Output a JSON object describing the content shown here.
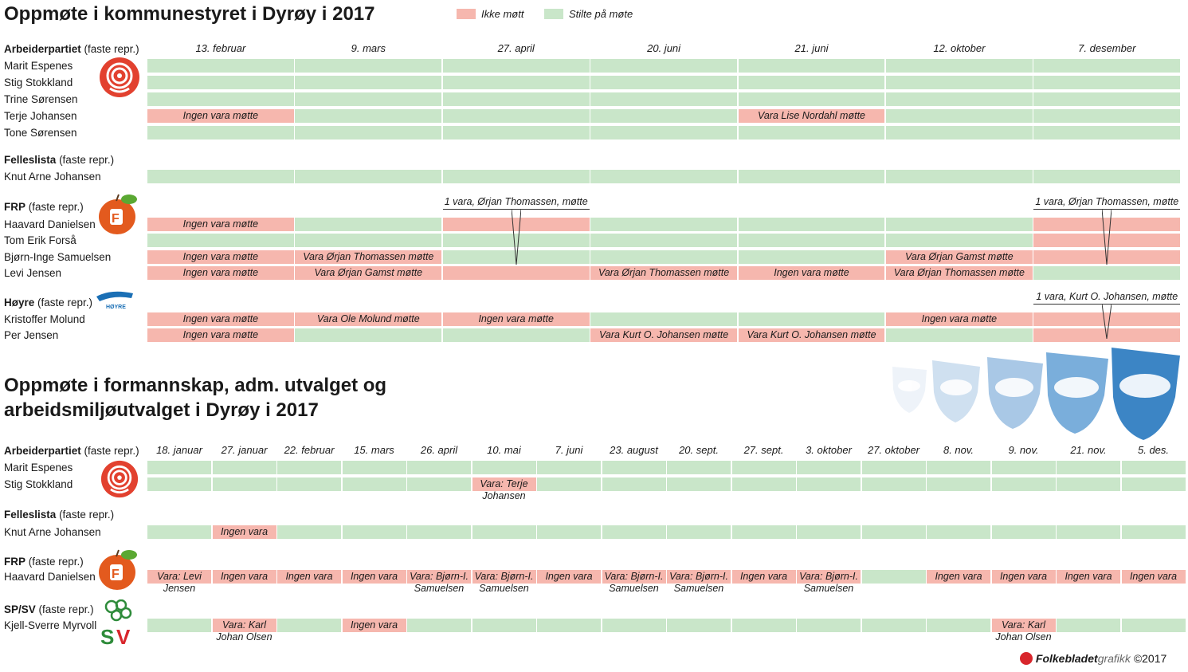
{
  "title1": "Oppmøte i kommunestyret i Dyrøy i 2017",
  "title2_line1": "Oppmøte i formannskap, adm. utvalget og",
  "title2_line2": "arbeidsmiljøutvalget i Dyrøy i 2017",
  "legend": [
    {
      "label": "Ikke møtt",
      "color": "#f6b7ae"
    },
    {
      "label": "Stilte på møte",
      "color": "#c9e6c9"
    }
  ],
  "colors": {
    "attended": "#c9e6c9",
    "absent": "#f6b7ae"
  },
  "footer": {
    "brand": "Folkebladet",
    "brand_suffix": "grafikk",
    "copyright": "©2017"
  },
  "chart_data": [
    {
      "type": "table",
      "title": "Oppmøte i kommunestyret i Dyrøy i 2017",
      "columns": [
        "13. februar",
        "9. mars",
        "27. april",
        "20. juni",
        "21. juni",
        "12. oktober",
        "7. desember"
      ],
      "groups": [
        {
          "party": "Arbeiderpartiet",
          "suffix": "(faste repr.)",
          "icon": "labour-rose-icon",
          "members": [
            {
              "name": "Marit Espenes",
              "cells": [
                "g",
                "g",
                "g",
                "g",
                "g",
                "g",
                "g"
              ],
              "notes": [
                "",
                "",
                "",
                "",
                "",
                "",
                ""
              ]
            },
            {
              "name": "Stig Stokkland",
              "cells": [
                "g",
                "g",
                "g",
                "g",
                "g",
                "g",
                "g"
              ],
              "notes": [
                "",
                "",
                "",
                "",
                "",
                "",
                ""
              ]
            },
            {
              "name": "Trine Sørensen",
              "cells": [
                "g",
                "g",
                "g",
                "g",
                "g",
                "g",
                "g"
              ],
              "notes": [
                "",
                "",
                "",
                "",
                "",
                "",
                ""
              ]
            },
            {
              "name": "Terje Johansen",
              "cells": [
                "r",
                "g",
                "g",
                "g",
                "r",
                "g",
                "g"
              ],
              "notes": [
                "Ingen vara møtte",
                "",
                "",
                "",
                "Vara Lise Nordahl møtte",
                "",
                ""
              ]
            },
            {
              "name": "Tone Sørensen",
              "cells": [
                "g",
                "g",
                "g",
                "g",
                "g",
                "g",
                "g"
              ],
              "notes": [
                "",
                "",
                "",
                "",
                "",
                "",
                ""
              ]
            }
          ]
        },
        {
          "party": "Felleslista",
          "suffix": "(faste repr.)",
          "icon": "",
          "members": [
            {
              "name": "Knut Arne Johansen",
              "cells": [
                "g",
                "g",
                "g",
                "g",
                "g",
                "g",
                "g"
              ],
              "notes": [
                "",
                "",
                "",
                "",
                "",
                "",
                ""
              ]
            }
          ]
        },
        {
          "party": "FRP",
          "suffix": "(faste repr.)",
          "icon": "frp-apple-icon",
          "members": [
            {
              "name": "Haavard Danielsen",
              "cells": [
                "r",
                "g",
                "r",
                "g",
                "g",
                "g",
                "r"
              ],
              "notes": [
                "Ingen vara møtte",
                "",
                "",
                "",
                "",
                "",
                ""
              ]
            },
            {
              "name": "Tom Erik Forså",
              "cells": [
                "g",
                "g",
                "g",
                "g",
                "g",
                "g",
                "r"
              ],
              "notes": [
                "",
                "",
                "",
                "",
                "",
                "",
                ""
              ]
            },
            {
              "name": "Bjørn-Inge Samuelsen",
              "cells": [
                "r",
                "r",
                "g",
                "g",
                "g",
                "r",
                "r"
              ],
              "notes": [
                "Ingen vara møtte",
                "Vara Ørjan Thomassen møtte",
                "",
                "",
                "",
                "Vara Ørjan Gamst møtte",
                ""
              ]
            },
            {
              "name": "Levi Jensen",
              "cells": [
                "r",
                "r",
                "r",
                "r",
                "r",
                "r",
                "g"
              ],
              "notes": [
                "Ingen vara møtte",
                "Vara Ørjan Gamst møtte",
                "",
                "Vara Ørjan Thomassen møtte",
                "Ingen vara møtte",
                "Vara Ørjan Thomassen møtte",
                ""
              ]
            }
          ]
        },
        {
          "party": "Høyre",
          "suffix": "(faste repr.)",
          "icon": "hoyre-logo-icon",
          "members": [
            {
              "name": "Kristoffer Molund",
              "cells": [
                "r",
                "r",
                "r",
                "g",
                "g",
                "r",
                "r"
              ],
              "notes": [
                "Ingen vara møtte",
                "Vara Ole Molund møtte",
                "Ingen vara møtte",
                "",
                "",
                "Ingen vara møtte",
                ""
              ]
            },
            {
              "name": "Per Jensen",
              "cells": [
                "r",
                "g",
                "g",
                "r",
                "r",
                "g",
                "r"
              ],
              "notes": [
                "Ingen vara møtte",
                "",
                "",
                "Vara Kurt O. Johansen møtte",
                "Vara Kurt O. Johansen møtte",
                "",
                ""
              ]
            }
          ]
        }
      ],
      "callouts": [
        {
          "text": "1 vara, Ørjan Thomassen, møtte",
          "column": 2
        },
        {
          "text": "1 vara, Ørjan Thomassen, møtte",
          "column": 6
        },
        {
          "text": "1 vara, Kurt O. Johansen, møtte",
          "column": 6
        }
      ]
    },
    {
      "type": "table",
      "title": "Oppmøte i formannskap, adm. utvalget og arbeidsmiljøutvalget i Dyrøy i 2017",
      "columns": [
        "18. januar",
        "27. januar",
        "22. februar",
        "15. mars",
        "26. april",
        "10. mai",
        "7. juni",
        "23. august",
        "20. sept.",
        "27. sept.",
        "3. oktober",
        "27. oktober",
        "8. nov.",
        "9. nov.",
        "21. nov.",
        "5. des."
      ],
      "groups": [
        {
          "party": "Arbeiderpartiet",
          "suffix": "(faste repr.)",
          "icon": "labour-rose-icon",
          "members": [
            {
              "name": "Marit Espenes",
              "cells": [
                "g",
                "g",
                "g",
                "g",
                "g",
                "g",
                "g",
                "g",
                "g",
                "g",
                "g",
                "g",
                "g",
                "g",
                "g",
                "g"
              ],
              "notes": [
                "",
                "",
                "",
                "",
                "",
                "",
                "",
                "",
                "",
                "",
                "",
                "",
                "",
                "",
                "",
                ""
              ]
            },
            {
              "name": "Stig Stokkland",
              "cells": [
                "g",
                "g",
                "g",
                "g",
                "g",
                "r",
                "g",
                "g",
                "g",
                "g",
                "g",
                "g",
                "g",
                "g",
                "g",
                "g"
              ],
              "notes": [
                "",
                "",
                "",
                "",
                "",
                "Vara: Terje|Johansen",
                "",
                "",
                "",
                "",
                "",
                "",
                "",
                "",
                "",
                ""
              ]
            }
          ]
        },
        {
          "party": "Felleslista",
          "suffix": "(faste repr.)",
          "icon": "",
          "members": [
            {
              "name": "Knut Arne Johansen",
              "cells": [
                "g",
                "r",
                "g",
                "g",
                "g",
                "g",
                "g",
                "g",
                "g",
                "g",
                "g",
                "g",
                "g",
                "g",
                "g",
                "g"
              ],
              "notes": [
                "",
                "Ingen vara",
                "",
                "",
                "",
                "",
                "",
                "",
                "",
                "",
                "",
                "",
                "",
                "",
                "",
                ""
              ]
            }
          ]
        },
        {
          "party": "FRP",
          "suffix": "(faste repr.)",
          "icon": "frp-apple-icon",
          "members": [
            {
              "name": "Haavard Danielsen",
              "cells": [
                "r",
                "r",
                "r",
                "r",
                "r",
                "r",
                "r",
                "r",
                "r",
                "r",
                "r",
                "g",
                "r",
                "r",
                "r",
                "r"
              ],
              "notes": [
                "Vara: Levi|Jensen",
                "Ingen vara",
                "Ingen vara",
                "Ingen vara",
                "Vara: Bjørn-I.|Samuelsen",
                "Vara: Bjørn-I.|Samuelsen",
                "Ingen vara",
                "Vara: Bjørn-I.|Samuelsen",
                "Vara: Bjørn-I.|Samuelsen",
                "Ingen vara",
                "Vara: Bjørn-I.|Samuelsen",
                "",
                "Ingen vara",
                "Ingen vara",
                "Ingen vara",
                "Ingen vara"
              ]
            }
          ]
        },
        {
          "party": "SP/SV",
          "suffix": "(faste repr.)",
          "icon": "sp-sv-logo-icon",
          "members": [
            {
              "name": "Kjell-Sverre Myrvoll",
              "cells": [
                "g",
                "r",
                "g",
                "r",
                "g",
                "g",
                "g",
                "g",
                "g",
                "g",
                "g",
                "g",
                "g",
                "r",
                "g",
                "g"
              ],
              "notes": [
                "",
                "Vara: Karl|Johan Olsen",
                "",
                "Ingen vara",
                "",
                "",
                "",
                "",
                "",
                "",
                "",
                "",
                "",
                "Vara: Karl|Johan Olsen",
                "",
                ""
              ]
            }
          ]
        }
      ]
    }
  ]
}
